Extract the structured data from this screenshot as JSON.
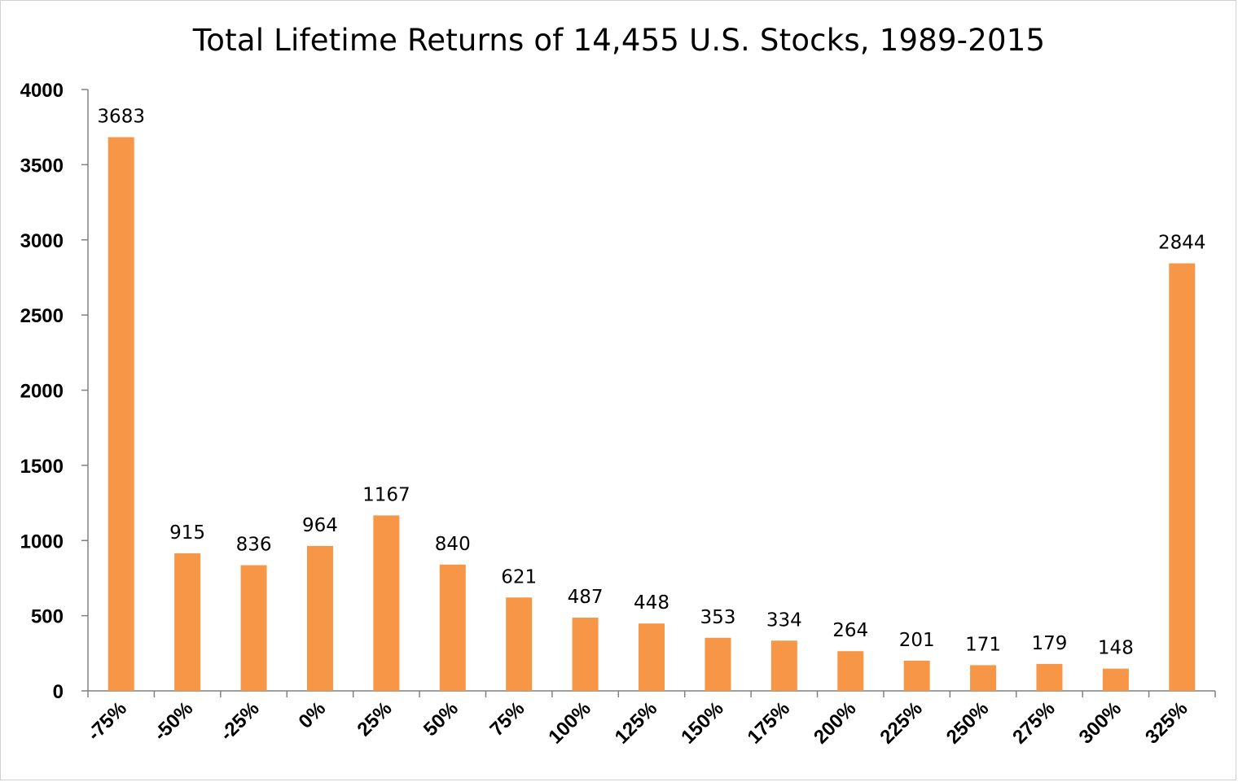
{
  "chart_data": {
    "type": "bar",
    "title": "Total Lifetime Returns of 14,455 U.S. Stocks, 1989-2015",
    "xlabel": "",
    "ylabel": "",
    "categories": [
      "-75%",
      "-50%",
      "-25%",
      "0%",
      "25%",
      "50%",
      "75%",
      "100%",
      "125%",
      "150%",
      "175%",
      "200%",
      "225%",
      "250%",
      "275%",
      "300%",
      "325%"
    ],
    "values": [
      3683,
      915,
      836,
      964,
      1167,
      840,
      621,
      487,
      448,
      353,
      334,
      264,
      201,
      171,
      179,
      148,
      2844
    ],
    "ylim": [
      0,
      4000
    ],
    "yticks": [
      "0",
      "500",
      "1000",
      "1500",
      "2000",
      "2500",
      "3000",
      "3500",
      "4000"
    ],
    "grid": false,
    "legend": "none",
    "bar_color": "#F79646",
    "axis_color": "#808080"
  }
}
